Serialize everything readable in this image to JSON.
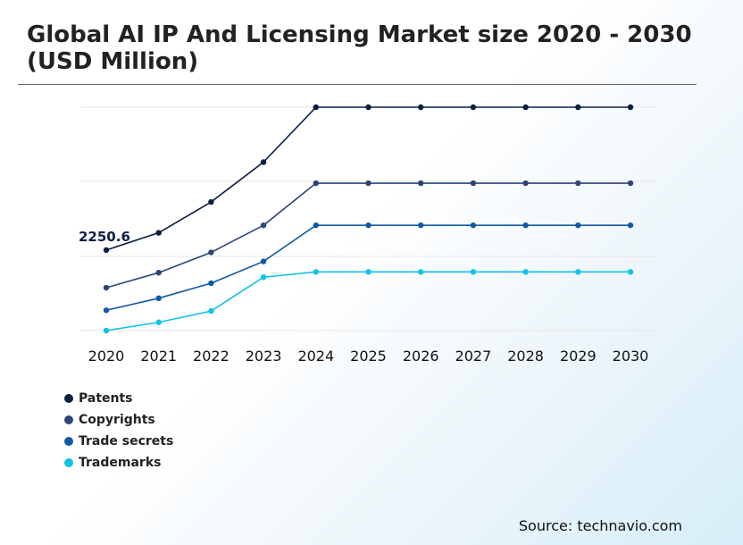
{
  "title_line1": "Global AI IP And Licensing Market size 2020 - 2030",
  "title_line2": "(USD Million)",
  "source": "Source: technavio.com",
  "chart_data": {
    "type": "line",
    "x": [
      "2020",
      "2021",
      "2022",
      "2023",
      "2024",
      "2025",
      "2026",
      "2027",
      "2028",
      "2029",
      "2030"
    ],
    "y_axis_labels_shown": false,
    "grid": "horizontal",
    "legend_position": "bottom-left",
    "annotation": {
      "series": "Patents",
      "x": "2020",
      "text": "2250.6"
    },
    "series": [
      {
        "name": "Patents",
        "color": "#0b1f44",
        "values": [
          2250.6,
          2480,
          2890,
          3420,
          4150,
          4150,
          4150,
          4150,
          4150,
          4150,
          4150
        ]
      },
      {
        "name": "Copyrights",
        "color": "#2b4677",
        "values": [
          1750,
          1950,
          2220,
          2580,
          3140,
          3140,
          3140,
          3140,
          3140,
          3140,
          3140
        ]
      },
      {
        "name": "Trade secrets",
        "color": "#115aa0",
        "values": [
          1450,
          1610,
          1810,
          2100,
          2580,
          2580,
          2580,
          2580,
          2580,
          2580,
          2580
        ]
      },
      {
        "name": "Trademarks",
        "color": "#11c2e6",
        "values": [
          1180,
          1290,
          1440,
          1890,
          1960,
          1960,
          1960,
          1960,
          1960,
          1960,
          1960
        ]
      }
    ]
  }
}
